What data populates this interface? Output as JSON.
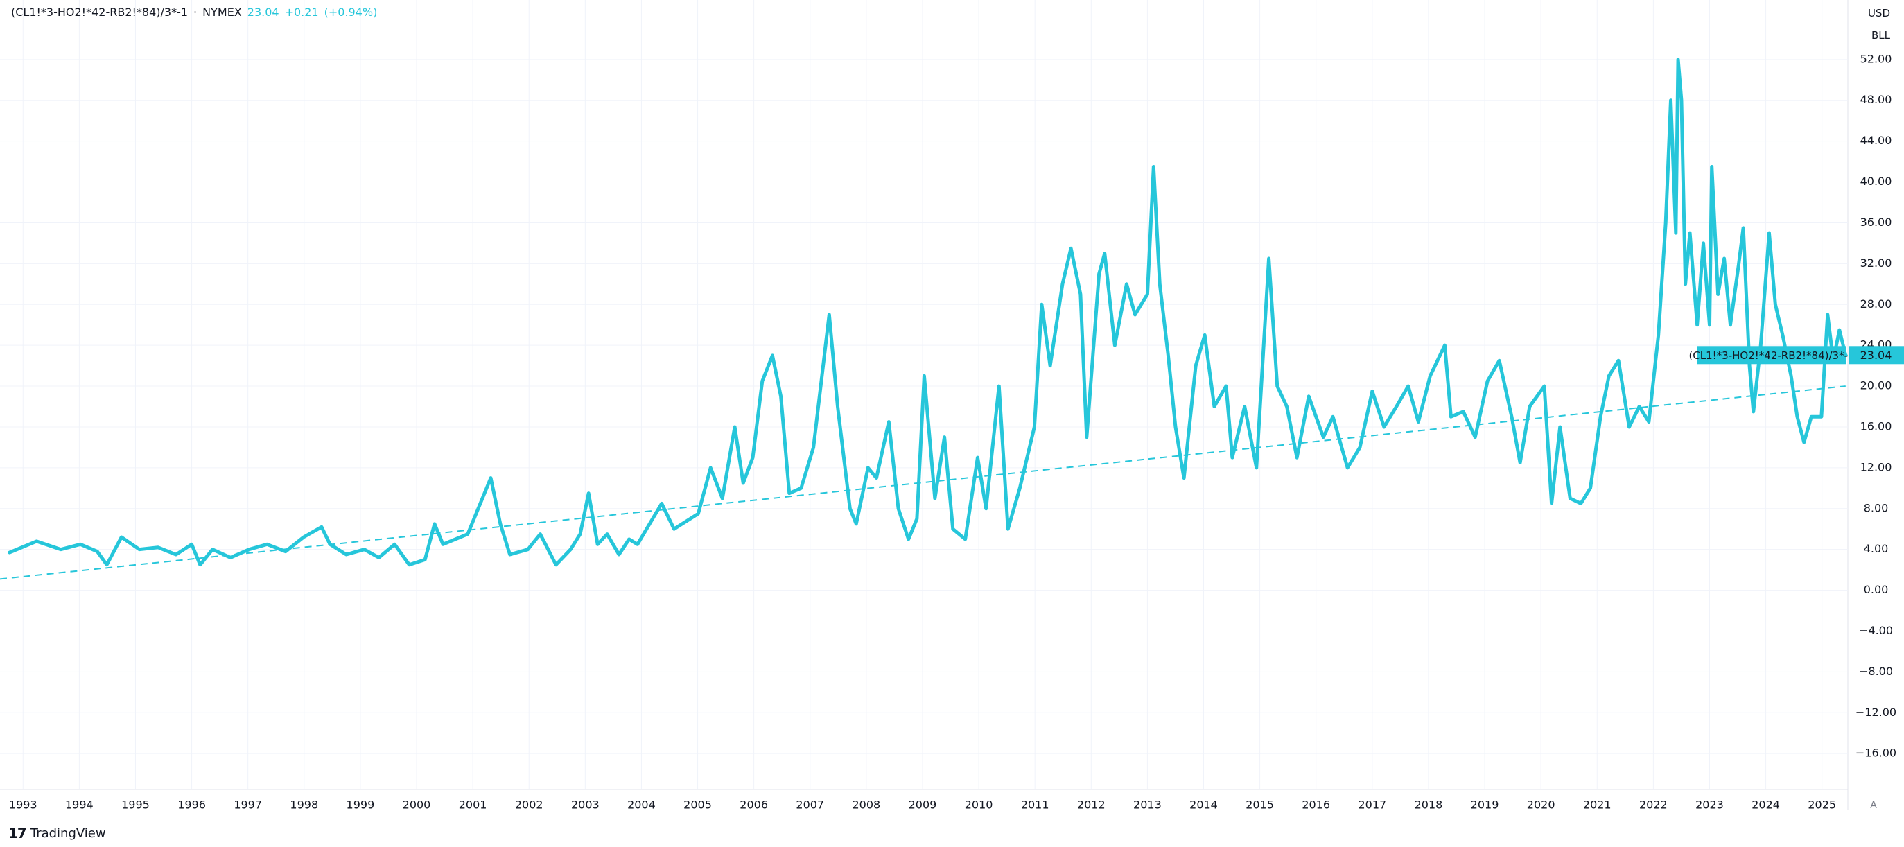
{
  "chart_data": {
    "type": "line",
    "exchange": "NYMEX",
    "separator": "·",
    "last_value": 23.04,
    "change": "+0.21",
    "change_percent": "(+0.94%)",
    "currency": "USD",
    "unit": "BLL",
    "watermark": "TradingView",
    "auto_button": "A",
    "color": "#26c6da",
    "grid": true,
    "xlim": [
      1992.59,
      2025.46
    ],
    "ylim": [
      -19.52,
      57.83
    ],
    "xticks": [
      1993,
      1994,
      1995,
      1996,
      1997,
      1998,
      1999,
      2000,
      2001,
      2002,
      2003,
      2004,
      2005,
      2006,
      2007,
      2008,
      2009,
      2010,
      2011,
      2012,
      2013,
      2014,
      2015,
      2016,
      2017,
      2018,
      2019,
      2020,
      2021,
      2022,
      2023,
      2024,
      2025
    ],
    "yticks": [
      {
        "value": -16,
        "label": "−16.00"
      },
      {
        "value": -12,
        "label": "−12.00"
      },
      {
        "value": -8,
        "label": "−8.00"
      },
      {
        "value": -4,
        "label": "−4.00"
      },
      {
        "value": 0,
        "label": "0.00"
      },
      {
        "value": 4,
        "label": "4.00"
      },
      {
        "value": 8,
        "label": "8.00"
      },
      {
        "value": 12,
        "label": "12.00"
      },
      {
        "value": 16,
        "label": "16.00"
      },
      {
        "value": 20,
        "label": "20.00"
      },
      {
        "value": 24,
        "label": "24.00"
      },
      {
        "value": 28,
        "label": "28.00"
      },
      {
        "value": 32,
        "label": "32.00"
      },
      {
        "value": 36,
        "label": "36.00"
      },
      {
        "value": 40,
        "label": "40.00"
      },
      {
        "value": 44,
        "label": "44.00"
      },
      {
        "value": 48,
        "label": "48.00"
      },
      {
        "value": 52,
        "label": "52.00"
      }
    ],
    "x": [
      1992.76,
      1993.24,
      1993.67,
      1994.02,
      1994.32,
      1994.49,
      1994.75,
      1995.07,
      1995.4,
      1995.72,
      1996.0,
      1996.15,
      1996.37,
      1996.69,
      1997.02,
      1997.34,
      1997.67,
      1997.99,
      1998.31,
      1998.46,
      1998.75,
      1999.07,
      1999.33,
      1999.61,
      1999.87,
      2000.15,
      2000.32,
      2000.47,
      2000.69,
      2000.91,
      2001.32,
      2001.49,
      2001.66,
      2001.98,
      2002.2,
      2002.48,
      2002.74,
      2002.91,
      2003.06,
      2003.22,
      2003.39,
      2003.6,
      2003.78,
      2003.93,
      2004.36,
      2004.58,
      2005.01,
      2005.23,
      2005.44,
      2005.66,
      2005.81,
      2005.98,
      2006.15,
      2006.33,
      2006.48,
      2006.63,
      2006.84,
      2007.06,
      2007.34,
      2007.49,
      2007.71,
      2007.82,
      2008.03,
      2008.18,
      2008.4,
      2008.57,
      2008.75,
      2008.9,
      2009.03,
      2009.22,
      2009.39,
      2009.54,
      2009.76,
      2009.98,
      2010.13,
      2010.36,
      2010.52,
      2010.73,
      2010.99,
      2011.12,
      2011.27,
      2011.49,
      2011.64,
      2011.81,
      2011.92,
      2012.14,
      2012.24,
      2012.42,
      2012.63,
      2012.78,
      2013.0,
      2013.11,
      2013.22,
      2013.37,
      2013.5,
      2013.65,
      2013.86,
      2014.02,
      2014.19,
      2014.4,
      2014.51,
      2014.73,
      2014.94,
      2015.16,
      2015.31,
      2015.48,
      2015.66,
      2015.87,
      2016.13,
      2016.3,
      2016.56,
      2016.78,
      2017.0,
      2017.21,
      2017.43,
      2017.64,
      2017.82,
      2018.03,
      2018.29,
      2018.4,
      2018.62,
      2018.83,
      2019.05,
      2019.26,
      2019.48,
      2019.63,
      2019.8,
      2020.06,
      2020.19,
      2020.34,
      2020.52,
      2020.71,
      2020.88,
      2021.06,
      2021.21,
      2021.38,
      2021.57,
      2021.75,
      2021.92,
      2022.09,
      2022.22,
      2022.31,
      2022.4,
      2022.44,
      2022.5,
      2022.57,
      2022.65,
      2022.78,
      2022.89,
      2023.0,
      2023.04,
      2023.15,
      2023.26,
      2023.37,
      2023.52,
      2023.6,
      2023.71,
      2023.78,
      2023.91,
      2024.06,
      2024.17,
      2024.3,
      2024.45,
      2024.56,
      2024.68,
      2024.81,
      2024.99,
      2025.1,
      2025.2,
      2025.31,
      2025.42
    ],
    "series": [
      {
        "name": "(CL1!*3-HO2!*42-RB2!*84)/3*-1",
        "color": "#26c6da",
        "values": [
          3.7,
          4.8,
          4.0,
          4.5,
          3.8,
          2.5,
          5.2,
          4.0,
          4.2,
          3.5,
          4.5,
          2.5,
          4.0,
          3.2,
          4.0,
          4.5,
          3.8,
          5.2,
          6.2,
          4.5,
          3.5,
          4.0,
          3.2,
          4.5,
          2.5,
          3.0,
          6.5,
          4.5,
          5.0,
          5.5,
          11,
          6.5,
          3.5,
          4.0,
          5.5,
          2.5,
          4.0,
          5.5,
          9.5,
          4.5,
          5.5,
          3.5,
          5.0,
          4.5,
          8.5,
          6,
          7.5,
          12,
          9,
          16,
          10.5,
          13,
          20.5,
          23,
          19,
          9.5,
          10,
          14,
          27,
          18,
          8,
          6.5,
          12,
          11,
          16.5,
          8,
          5,
          7,
          21,
          9,
          15,
          6,
          5,
          13,
          8,
          20,
          6,
          10,
          16,
          28,
          22,
          30,
          33.5,
          29,
          15,
          31,
          33,
          24,
          30,
          27,
          29,
          41.5,
          30,
          23,
          16,
          11,
          22,
          25,
          18,
          20,
          13,
          18,
          12,
          32.5,
          20,
          18,
          13,
          19,
          15,
          17,
          12,
          14,
          19.5,
          16,
          18,
          20,
          16.5,
          21,
          24,
          17,
          17.5,
          15,
          20.5,
          22.5,
          17,
          12.5,
          18,
          20,
          8.5,
          16,
          9,
          8.5,
          10,
          17,
          21,
          22.5,
          16,
          18,
          16.5,
          25,
          36,
          48,
          35,
          52,
          48,
          30,
          35,
          26,
          34,
          26,
          41.5,
          29,
          32.5,
          26,
          32,
          35.5,
          22,
          17.5,
          24,
          35,
          28,
          25,
          21,
          17,
          14.5,
          17,
          17,
          27,
          22.5,
          25.5,
          23
        ]
      }
    ],
    "trendline": {
      "x": [
        1992.59,
        2025.42
      ],
      "values": [
        1.1,
        20.0
      ],
      "color": "#26c6da"
    }
  }
}
